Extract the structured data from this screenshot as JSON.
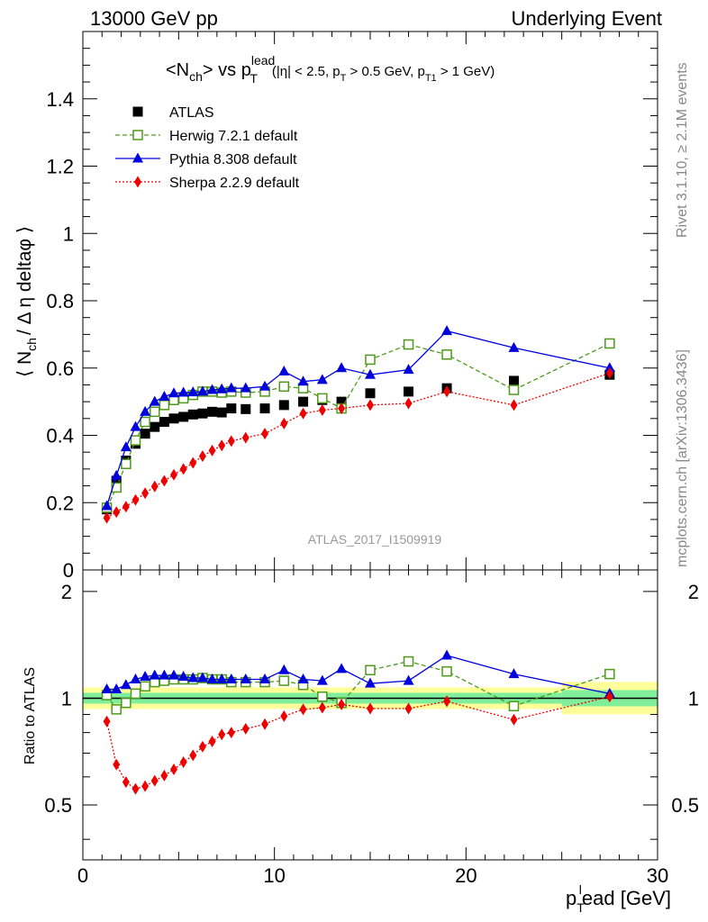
{
  "header": {
    "left": "13000 GeV pp",
    "right": "Underlying Event"
  },
  "side_labels": {
    "rivet": "Rivet 3.1.10, ≥ 2.1M events",
    "mcplots": "mcplots.cern.ch [arXiv:1306.3436]"
  },
  "watermark": "ATLAS_2017_I1509919",
  "title": {
    "main_prefix": "<N",
    "main_sub": "ch",
    "main_mid": "> vs p",
    "main_sup": "lead",
    "main_sub2": "T",
    "cuts": "(|η| < 2.5, p",
    "cuts_sub1": "T",
    "cuts_mid": " > 0.5 GeV, p",
    "cuts_sub2": "T1",
    "cuts_end": " > 1 GeV)"
  },
  "ylabel_top": {
    "pre": "⟨ N",
    "sub": "ch",
    "post": "/ Δ η deltaφ ⟩"
  },
  "ylabel_bottom": "Ratio to ATLAS",
  "xlabel": {
    "pre": "p",
    "sub": "T",
    "sup": "l",
    "post": "ead [GeV]"
  },
  "chart_data": [
    {
      "type": "scatter",
      "panel": "main",
      "xlim": [
        0,
        30
      ],
      "ylim": [
        0,
        1.6
      ],
      "xticks": [
        0,
        10,
        20,
        30
      ],
      "yticks": [
        0,
        0.2,
        0.4,
        0.6,
        0.8,
        1,
        1.2,
        1.4
      ],
      "ytick_labels": [
        "0",
        "0.2",
        "0.4",
        "0.6",
        "0.8",
        "1",
        "1.2",
        "1.4"
      ],
      "legend_position": "top-left",
      "series": [
        {
          "name": "ATLAS",
          "color": "#000000",
          "marker": "filled-square",
          "line": "none",
          "x": [
            1.25,
            1.75,
            2.25,
            2.75,
            3.25,
            3.75,
            4.25,
            4.75,
            5.25,
            5.75,
            6.25,
            6.75,
            7.25,
            7.75,
            8.5,
            9.5,
            10.5,
            11.5,
            12.5,
            13.5,
            15,
            17,
            19,
            22.5,
            27.5
          ],
          "y": [
            0.18,
            0.265,
            0.325,
            0.375,
            0.405,
            0.425,
            0.44,
            0.45,
            0.455,
            0.462,
            0.465,
            0.47,
            0.468,
            0.48,
            0.478,
            0.48,
            0.49,
            0.5,
            0.505,
            0.5,
            0.525,
            0.53,
            0.54,
            0.562,
            0.58
          ]
        },
        {
          "name": "Herwig 7.2.1 default",
          "color": "#4d9a1a",
          "marker": "open-square",
          "line": "dashed",
          "x": [
            1.25,
            1.75,
            2.25,
            2.75,
            3.25,
            3.75,
            4.25,
            4.75,
            5.25,
            5.75,
            6.25,
            6.75,
            7.25,
            7.75,
            8.5,
            9.5,
            10.5,
            11.5,
            12.5,
            13.5,
            15,
            17,
            19,
            22.5,
            27.5
          ],
          "y": [
            0.185,
            0.245,
            0.315,
            0.385,
            0.44,
            0.47,
            0.49,
            0.505,
            0.51,
            0.52,
            0.53,
            0.53,
            0.527,
            0.53,
            0.527,
            0.53,
            0.545,
            0.54,
            0.51,
            0.48,
            0.625,
            0.67,
            0.64,
            0.535,
            0.673
          ]
        },
        {
          "name": "Pythia 8.308 default",
          "color": "#0000dd",
          "marker": "filled-triangle",
          "line": "solid",
          "x": [
            1.25,
            1.75,
            2.25,
            2.75,
            3.25,
            3.75,
            4.25,
            4.75,
            5.25,
            5.75,
            6.25,
            6.75,
            7.25,
            7.75,
            8.5,
            9.5,
            10.5,
            11.5,
            12.5,
            13.5,
            15,
            17,
            19,
            22.5,
            27.5
          ],
          "y": [
            0.19,
            0.28,
            0.365,
            0.425,
            0.47,
            0.5,
            0.515,
            0.525,
            0.527,
            0.528,
            0.53,
            0.535,
            0.537,
            0.54,
            0.54,
            0.545,
            0.59,
            0.56,
            0.565,
            0.6,
            0.58,
            0.595,
            0.71,
            0.66,
            0.6
          ]
        },
        {
          "name": "Sherpa 2.2.9 default",
          "color": "#ee0000",
          "marker": "filled-diamond",
          "line": "dotted",
          "x": [
            1.25,
            1.75,
            2.25,
            2.75,
            3.25,
            3.75,
            4.25,
            4.75,
            5.25,
            5.75,
            6.25,
            6.75,
            7.25,
            7.75,
            8.5,
            9.5,
            10.5,
            11.5,
            12.5,
            13.5,
            15,
            17,
            19,
            22.5,
            27.5
          ],
          "y": [
            0.155,
            0.172,
            0.188,
            0.208,
            0.228,
            0.248,
            0.265,
            0.283,
            0.3,
            0.318,
            0.338,
            0.355,
            0.37,
            0.383,
            0.393,
            0.405,
            0.435,
            0.465,
            0.475,
            0.48,
            0.49,
            0.495,
            0.53,
            0.49,
            0.585
          ]
        }
      ]
    },
    {
      "type": "scatter",
      "panel": "ratio",
      "ylabel": "Ratio to ATLAS",
      "xlim": [
        0,
        30
      ],
      "ylim": [
        0.35,
        2.3
      ],
      "y_scale": "log",
      "xticks": [
        0,
        10,
        20,
        30
      ],
      "yticks": [
        0.5,
        1,
        2
      ],
      "ytick_labels": [
        "0.5",
        "1",
        "2"
      ],
      "reference_line": 1,
      "series": [
        {
          "name": "Herwig 7.2.1 default",
          "color": "#4d9a1a",
          "marker": "open-square",
          "line": "dashed",
          "x": [
            1.25,
            1.75,
            2.25,
            2.75,
            3.25,
            3.75,
            4.25,
            4.75,
            5.25,
            5.75,
            6.25,
            6.75,
            7.25,
            7.75,
            8.5,
            9.5,
            10.5,
            11.5,
            12.5,
            13.5,
            15,
            17,
            19,
            22.5,
            27.5
          ],
          "y": [
            1.02,
            0.93,
            0.97,
            1.03,
            1.08,
            1.11,
            1.12,
            1.13,
            1.13,
            1.13,
            1.14,
            1.13,
            1.13,
            1.11,
            1.11,
            1.11,
            1.12,
            1.09,
            1.01,
            0.97,
            1.2,
            1.27,
            1.19,
            0.95,
            1.17
          ]
        },
        {
          "name": "Pythia 8.308 default",
          "color": "#0000dd",
          "marker": "filled-triangle",
          "line": "solid",
          "x": [
            1.25,
            1.75,
            2.25,
            2.75,
            3.25,
            3.75,
            4.25,
            4.75,
            5.25,
            5.75,
            6.25,
            6.75,
            7.25,
            7.75,
            8.5,
            9.5,
            10.5,
            11.5,
            12.5,
            13.5,
            15,
            17,
            19,
            22.5,
            27.5
          ],
          "y": [
            1.06,
            1.06,
            1.09,
            1.13,
            1.15,
            1.16,
            1.16,
            1.16,
            1.15,
            1.14,
            1.14,
            1.13,
            1.13,
            1.13,
            1.13,
            1.13,
            1.2,
            1.13,
            1.12,
            1.21,
            1.1,
            1.12,
            1.32,
            1.17,
            1.03
          ]
        },
        {
          "name": "Sherpa 2.2.9 default",
          "color": "#ee0000",
          "marker": "filled-diamond",
          "line": "dotted",
          "x": [
            1.25,
            1.75,
            2.25,
            2.75,
            3.25,
            3.75,
            4.25,
            4.75,
            5.25,
            5.75,
            6.25,
            6.75,
            7.25,
            7.75,
            8.5,
            9.5,
            10.5,
            11.5,
            12.5,
            13.5,
            15,
            17,
            19,
            22.5,
            27.5
          ],
          "y": [
            0.86,
            0.65,
            0.58,
            0.555,
            0.565,
            0.585,
            0.605,
            0.63,
            0.66,
            0.69,
            0.73,
            0.755,
            0.79,
            0.8,
            0.82,
            0.845,
            0.89,
            0.93,
            0.94,
            0.96,
            0.935,
            0.935,
            0.98,
            0.87,
            1.01
          ]
        }
      ]
    }
  ]
}
